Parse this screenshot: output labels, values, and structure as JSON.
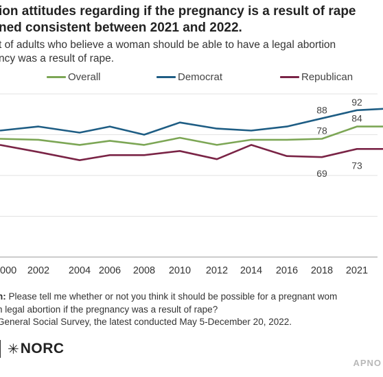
{
  "header": {
    "title_line1": "ion attitudes regarding if the pregnancy is a result of rape",
    "title_line2": "ned consistent between 2021 and 2022.",
    "subtitle_line1": "t of adults who believe a woman should be able to have a legal abortion",
    "subtitle_line2": "ncy was a result of rape."
  },
  "legend": [
    {
      "label": "Overall",
      "color": "#7ca655"
    },
    {
      "label": "Democrat",
      "color": "#1e5d84"
    },
    {
      "label": "Republican",
      "color": "#7a2446"
    }
  ],
  "chart_data": {
    "type": "line",
    "x": [
      2000,
      2002,
      2004,
      2006,
      2008,
      2010,
      2012,
      2014,
      2016,
      2018,
      2021,
      2022
    ],
    "x_tick_labels": [
      "000",
      "2002",
      "2004",
      "2006",
      "2008",
      "2010",
      "2012",
      "2014",
      "2016",
      "2018",
      "2021"
    ],
    "series": [
      {
        "name": "Overall",
        "color": "#7ca655",
        "values": [
          78,
          77.5,
          75,
          77,
          75,
          78.5,
          75,
          77.5,
          77.5,
          78,
          84,
          84
        ]
      },
      {
        "name": "Democrat",
        "color": "#1e5d84",
        "values": [
          82,
          84,
          81,
          84,
          80,
          86,
          83,
          82,
          84,
          88,
          92,
          92.7
        ]
      },
      {
        "name": "Republican",
        "color": "#7a2446",
        "values": [
          75,
          71.5,
          67.5,
          70,
          70,
          72,
          68,
          75,
          69.5,
          69,
          73,
          73
        ]
      }
    ],
    "data_labels": [
      {
        "series": "Democrat",
        "x": 2018,
        "value": "88"
      },
      {
        "series": "Democrat",
        "x": 2021,
        "value": "92"
      },
      {
        "series": "Overall",
        "x": 2018,
        "value": "78"
      },
      {
        "series": "Overall",
        "x": 2021,
        "value": "84"
      },
      {
        "series": "Republican",
        "x": 2018,
        "value": "69"
      },
      {
        "series": "Republican",
        "x": 2021,
        "value": "73"
      }
    ],
    "gridline_values": [
      20,
      40,
      60,
      80,
      100
    ],
    "ylim": [
      20,
      100
    ],
    "grid": true
  },
  "notes": {
    "question_lead": "n:",
    "question_line1": " Please tell me whether or not you think it should be possible for a pregnant wom",
    "question_line2": "n legal abortion if the pregnancy was a result of rape?",
    "source_line": " General Social Survey, the latest conducted May 5-December 20, 2022."
  },
  "footer": {
    "logo_text": "NORC",
    "logo_mark": "✳",
    "right_text": "APNO"
  }
}
